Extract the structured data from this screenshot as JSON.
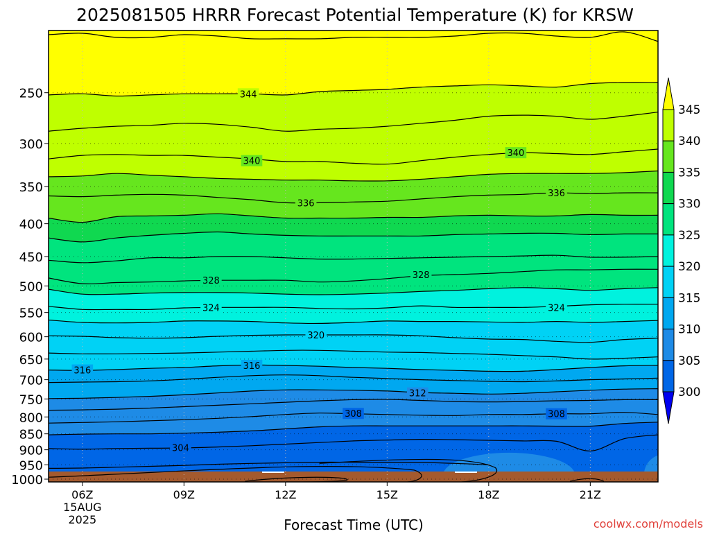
{
  "chart_data": {
    "type": "heatmap",
    "title": "2025081505 HRRR Forecast Potential Temperature (K) for KRSW",
    "xlabel": "Forecast Time (UTC)",
    "ylabel": "",
    "credit": "coolwx.com/models",
    "colors": {
      "band_300_305": "#0066e6",
      "band_305_310": "#1e8be6",
      "band_310_315": "#00a8f0",
      "band_315_320": "#00d2f5",
      "band_320_325": "#00f2de",
      "band_325_330": "#00e47e",
      "band_330_335": "#10d850",
      "band_335_340": "#66e61e",
      "band_340_345": "#bfff00",
      "above_345": "#ffff00",
      "below_300": "#0000f0",
      "terrain": "#a45a2e",
      "contour": "#000000"
    },
    "x_ticks": [
      {
        "hour": 6,
        "label": "06Z",
        "date": "15AUG",
        "year": "2025"
      },
      {
        "hour": 9,
        "label": "09Z"
      },
      {
        "hour": 12,
        "label": "12Z"
      },
      {
        "hour": 15,
        "label": "15Z"
      },
      {
        "hour": 18,
        "label": "18Z"
      },
      {
        "hour": 21,
        "label": "21Z"
      }
    ],
    "xlim": [
      5,
      23
    ],
    "y_axis": {
      "units": "hPa",
      "scale": "log",
      "ylim": [
        1010,
        200
      ],
      "reversed": true
    },
    "y_ticks": [
      250,
      300,
      350,
      400,
      450,
      500,
      550,
      600,
      650,
      700,
      750,
      800,
      850,
      900,
      950,
      1000
    ],
    "grid": "dotted",
    "colorbar": {
      "levels": [
        300,
        305,
        310,
        315,
        320,
        325,
        330,
        335,
        340,
        345
      ],
      "labels": [
        "300",
        "305",
        "310",
        "315",
        "320",
        "325",
        "330",
        "335",
        "340",
        "345"
      ]
    },
    "hours": [
      5,
      6,
      7,
      8,
      9,
      10,
      11,
      12,
      13,
      14,
      15,
      16,
      17,
      18,
      19,
      20,
      21,
      22,
      23
    ],
    "contours": [
      {
        "theta": 346,
        "p": [
          203,
          202,
          205,
          205,
          203,
          204,
          206,
          206,
          206,
          205,
          205,
          205,
          204,
          202,
          202,
          204,
          205,
          201,
          208
        ]
      },
      {
        "theta": 344,
        "p": [
          252,
          251,
          253,
          252,
          251,
          251,
          251,
          252,
          249,
          248,
          247,
          245,
          244,
          243,
          244,
          245,
          242,
          241,
          241
        ]
      },
      {
        "theta": 342,
        "p": [
          287,
          284,
          282,
          281,
          279,
          280,
          283,
          287,
          285,
          284,
          282,
          279,
          276,
          272,
          271,
          272,
          275,
          272,
          268
        ]
      },
      {
        "theta": 340,
        "p": [
          317,
          313,
          312,
          313,
          313,
          315,
          317,
          320,
          320,
          322,
          323,
          319,
          315,
          312,
          310,
          311,
          312,
          309,
          306
        ]
      },
      {
        "theta": 338,
        "p": [
          338,
          337,
          334,
          336,
          338,
          340,
          341,
          342,
          342,
          343,
          343,
          341,
          338,
          335,
          334,
          334,
          334,
          333,
          331
        ]
      },
      {
        "theta": 336,
        "p": [
          362,
          363,
          361,
          360,
          361,
          364,
          367,
          371,
          371,
          370,
          369,
          366,
          363,
          361,
          360,
          358,
          359,
          358,
          358
        ]
      },
      {
        "theta": 334,
        "p": [
          392,
          398,
          390,
          389,
          388,
          386,
          389,
          392,
          392,
          392,
          391,
          391,
          389,
          388,
          389,
          389,
          387,
          388,
          388
        ]
      },
      {
        "theta": 332,
        "p": [
          421,
          427,
          421,
          417,
          414,
          412,
          415,
          417,
          418,
          418,
          418,
          418,
          416,
          415,
          414,
          414,
          416,
          415,
          415
        ]
      },
      {
        "theta": 330,
        "p": [
          456,
          460,
          457,
          452,
          452,
          450,
          450,
          452,
          454,
          454,
          453,
          452,
          451,
          450,
          449,
          448,
          451,
          451,
          450
        ]
      },
      {
        "theta": 328,
        "p": [
          486,
          496,
          494,
          493,
          491,
          490,
          490,
          490,
          493,
          491,
          487,
          482,
          480,
          478,
          475,
          472,
          472,
          471,
          471
        ]
      },
      {
        "theta": 326,
        "p": [
          506,
          515,
          515,
          513,
          512,
          512,
          513,
          515,
          516,
          515,
          513,
          510,
          508,
          505,
          503,
          505,
          508,
          505,
          503
        ]
      },
      {
        "theta": 324,
        "p": [
          538,
          544,
          544,
          544,
          541,
          540,
          540,
          540,
          542,
          543,
          541,
          537,
          540,
          540,
          540,
          538,
          535,
          534,
          534
        ]
      },
      {
        "theta": 322,
        "p": [
          565,
          570,
          571,
          570,
          567,
          567,
          568,
          571,
          572,
          570,
          567,
          568,
          568,
          569,
          570,
          568,
          570,
          568,
          566
        ]
      },
      {
        "theta": 320,
        "p": [
          598,
          599,
          602,
          603,
          602,
          599,
          597,
          596,
          596,
          596,
          596,
          598,
          602,
          605,
          606,
          610,
          612,
          606,
          603
        ]
      },
      {
        "theta": 318,
        "p": [
          636,
          638,
          638,
          637,
          636,
          634,
          632,
          630,
          630,
          632,
          634,
          635,
          637,
          639,
          642,
          645,
          650,
          648,
          645
        ]
      },
      {
        "theta": 316,
        "p": [
          676,
          677,
          675,
          672,
          670,
          666,
          664,
          665,
          667,
          670,
          672,
          675,
          677,
          679,
          679,
          675,
          670,
          666,
          665
        ]
      },
      {
        "theta": 314,
        "p": [
          707,
          706,
          705,
          703,
          699,
          694,
          690,
          688,
          690,
          694,
          697,
          700,
          702,
          704,
          705,
          703,
          700,
          698,
          696
        ]
      },
      {
        "theta": 312,
        "p": [
          749,
          748,
          746,
          743,
          739,
          734,
          729,
          726,
          726,
          727,
          729,
          733,
          735,
          737,
          735,
          731,
          727,
          724,
          723
        ]
      },
      {
        "theta": 310,
        "p": [
          781,
          780,
          778,
          775,
          771,
          767,
          763,
          759,
          755,
          752,
          751,
          754,
          757,
          758,
          757,
          755,
          754,
          752,
          752
        ]
      },
      {
        "theta": 308,
        "p": [
          818,
          816,
          814,
          811,
          808,
          804,
          799,
          793,
          789,
          791,
          793,
          795,
          796,
          793,
          793,
          791,
          791,
          787,
          793
        ]
      },
      {
        "theta": 306,
        "p": [
          853,
          851,
          850,
          850,
          848,
          845,
          841,
          835,
          829,
          826,
          826,
          826,
          826,
          826,
          826,
          827,
          827,
          819,
          815
        ]
      },
      {
        "theta": 304,
        "p": [
          896,
          898,
          896,
          895,
          894,
          891,
          887,
          882,
          877,
          872,
          869,
          867,
          868,
          870,
          872,
          873,
          904,
          865,
          853
        ]
      },
      {
        "theta": 302,
        "p": [
          962,
          961,
          958,
          955,
          952,
          948,
          945,
          943,
          941,
          941,
          941,
          942,
          945,
          950,
          null,
          null,
          null,
          null,
          null
        ]
      }
    ],
    "labels": [
      {
        "hour": 10.9,
        "p": 251,
        "text": "344"
      },
      {
        "hour": 11.0,
        "p": 319,
        "text": "340"
      },
      {
        "hour": 18.8,
        "p": 310,
        "text": "340"
      },
      {
        "hour": 12.6,
        "p": 371,
        "text": "336"
      },
      {
        "hour": 20.0,
        "p": 358,
        "text": "336"
      },
      {
        "hour": 9.8,
        "p": 490,
        "text": "328"
      },
      {
        "hour": 16.0,
        "p": 480,
        "text": "328"
      },
      {
        "hour": 9.8,
        "p": 540,
        "text": "324"
      },
      {
        "hour": 20.0,
        "p": 540,
        "text": "324"
      },
      {
        "hour": 12.9,
        "p": 596,
        "text": "320"
      },
      {
        "hour": 6.0,
        "p": 676,
        "text": "316"
      },
      {
        "hour": 11.0,
        "p": 665,
        "text": "316"
      },
      {
        "hour": 15.9,
        "p": 734,
        "text": "312"
      },
      {
        "hour": 14.0,
        "p": 790,
        "text": "308"
      },
      {
        "hour": 20.0,
        "p": 791,
        "text": "308"
      },
      {
        "hour": 8.9,
        "p": 893,
        "text": "304"
      }
    ]
  }
}
